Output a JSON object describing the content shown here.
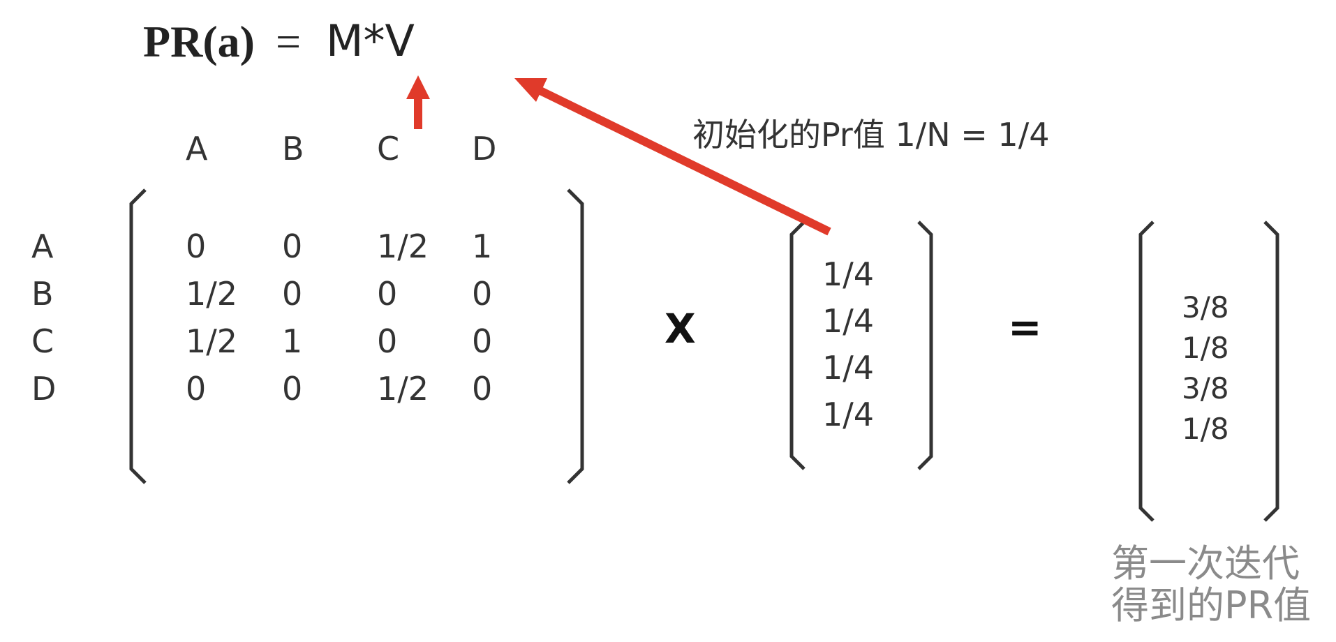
{
  "formula": {
    "lhs": "PR(a)",
    "eq": "=",
    "rhs": "M*V"
  },
  "annotation": "初始化的Pr值 1/N = 1/4",
  "matrix": {
    "col_headers": [
      "A",
      "B",
      "C",
      "D"
    ],
    "row_headers": [
      "A",
      "B",
      "C",
      "D"
    ],
    "rows": [
      [
        "0",
        "0",
        "1/2",
        "1"
      ],
      [
        "1/2",
        "0",
        "0",
        "0"
      ],
      [
        "1/2",
        "1",
        "0",
        "0"
      ],
      [
        "0",
        "0",
        "1/2",
        "0"
      ]
    ]
  },
  "multiply_sign": "X",
  "vector": [
    "1/4",
    "1/4",
    "1/4",
    "1/4"
  ],
  "equals_sign": "=",
  "result": [
    "3/8",
    "1/8",
    "3/8",
    "1/8"
  ],
  "caption": {
    "line1": "第一次迭代",
    "line2": "得到的PR值"
  },
  "colors": {
    "arrow": "#e03a2a",
    "bracket": "#333333",
    "caption": "#8a8a8a"
  }
}
